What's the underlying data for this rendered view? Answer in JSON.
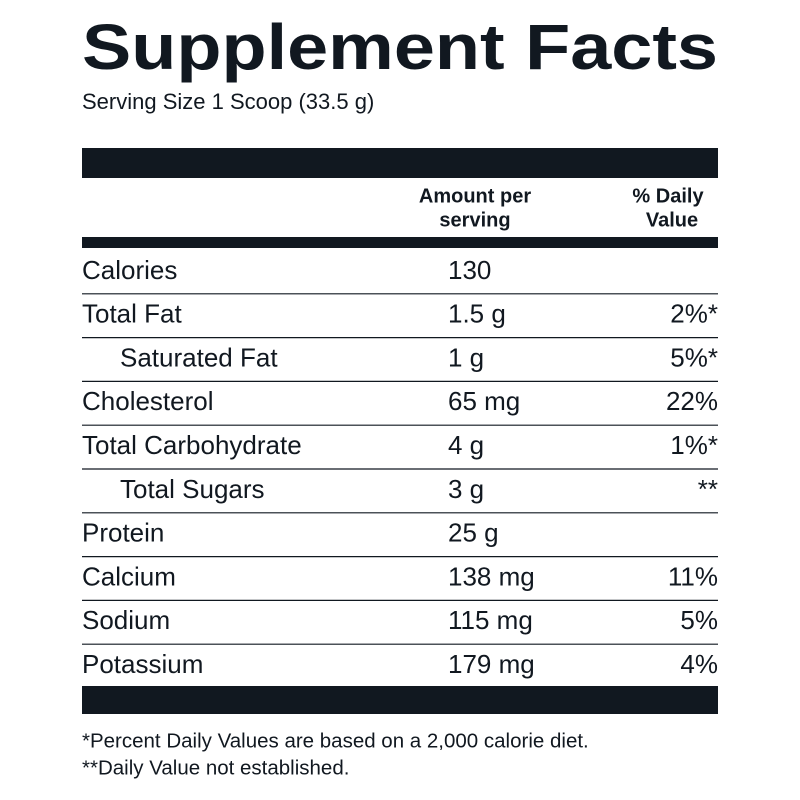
{
  "title": "Supplement Facts",
  "serving_size": "Serving Size 1 Scoop (33.5 g)",
  "header": {
    "amount": [
      "Amount per",
      "serving"
    ],
    "daily_value": [
      "% Daily",
      "Value"
    ]
  },
  "rows": [
    {
      "name": "Calories",
      "amount": "130"
    },
    {
      "name": "Total Fat",
      "amount": "1.5 g",
      "dv": "2%*"
    },
    {
      "name": "Saturated Fat",
      "amount": "1 g",
      "dv": "5%*",
      "sub": true
    },
    {
      "name": "Cholesterol",
      "amount": "65 mg",
      "dv": "22%"
    },
    {
      "name": "Total Carbohydrate",
      "amount": "4 g",
      "dv": "1%*"
    },
    {
      "name": "Total Sugars",
      "amount": "3 g",
      "dv": "**",
      "sub": true
    },
    {
      "name": "Protein",
      "amount": "25 g"
    },
    {
      "name": "Calcium",
      "amount": "138 mg",
      "dv": "11%"
    },
    {
      "name": "Sodium",
      "amount": "115 mg",
      "dv": "5%"
    },
    {
      "name": "Potassium",
      "amount": "179 mg",
      "dv": "4%"
    }
  ],
  "footnotes": [
    "*Percent Daily Values are based on a 2,000 calorie diet.",
    "**Daily Value not established."
  ]
}
